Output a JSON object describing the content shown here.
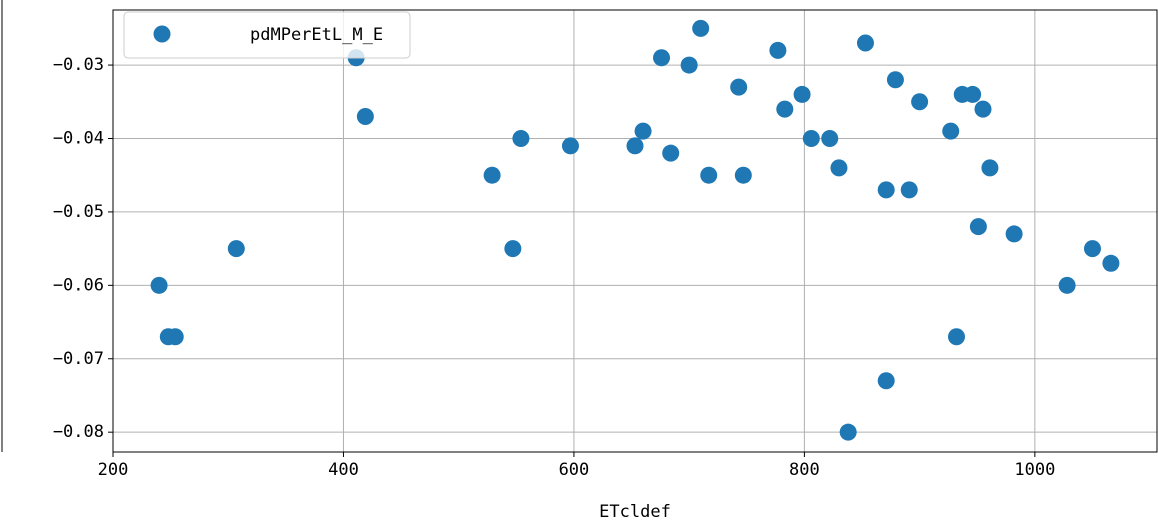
{
  "chart_data": {
    "type": "scatter",
    "xlabel": "ETcldef",
    "series": [
      {
        "name": "pdMPerEtL_M_E",
        "color": "#1f77b4",
        "x": [
          240,
          248,
          254,
          307,
          411,
          419,
          529,
          547,
          554,
          597,
          653,
          660,
          676,
          684,
          700,
          710,
          717,
          743,
          747,
          777,
          783,
          798,
          806,
          822,
          830,
          838,
          853,
          871,
          871,
          879,
          891,
          900,
          927,
          932,
          937,
          946,
          955,
          951,
          961,
          982,
          1028,
          1050,
          1066
        ],
        "values": [
          -0.06,
          -0.067,
          -0.067,
          -0.055,
          -0.029,
          -0.037,
          -0.045,
          -0.055,
          -0.04,
          -0.041,
          -0.041,
          -0.039,
          -0.029,
          -0.042,
          -0.03,
          -0.025,
          -0.045,
          -0.033,
          -0.045,
          -0.028,
          -0.036,
          -0.034,
          -0.04,
          -0.04,
          -0.044,
          -0.08,
          -0.027,
          -0.047,
          -0.073,
          -0.032,
          -0.047,
          -0.035,
          -0.039,
          -0.067,
          -0.034,
          -0.034,
          -0.036,
          -0.052,
          -0.044,
          -0.053,
          -0.06,
          -0.055,
          -0.057
        ]
      }
    ],
    "xlim": [
      200,
      1106
    ],
    "ylim": [
      -0.0827,
      -0.0225
    ],
    "xticks": [
      200,
      400,
      600,
      800,
      1000
    ],
    "yticks": [
      {
        "value": -0.03,
        "label": "−0.03"
      },
      {
        "value": -0.04,
        "label": "−0.04"
      },
      {
        "value": -0.05,
        "label": "−0.05"
      },
      {
        "value": -0.06,
        "label": "−0.06"
      },
      {
        "value": -0.07,
        "label": "−0.07"
      },
      {
        "value": -0.08,
        "label": "−0.08"
      }
    ],
    "grid": true,
    "legend": "upper left"
  }
}
